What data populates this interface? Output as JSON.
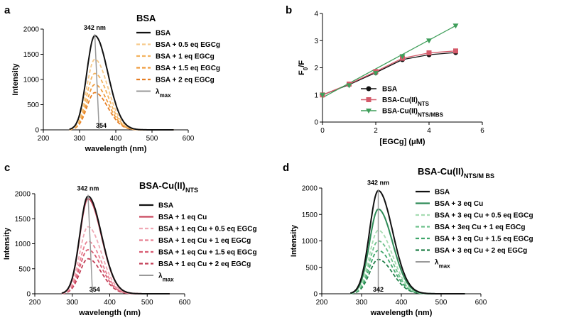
{
  "chart_data": [
    {
      "type": "line",
      "panel": "a",
      "title": "BSA",
      "xlabel": "wavelength (nm)",
      "ylabel": "Intensity",
      "xlim": [
        200,
        600
      ],
      "ylim": [
        0,
        2000
      ],
      "xticks": [
        200,
        300,
        400,
        500,
        600
      ],
      "yticks": [
        0,
        500,
        1000,
        1500,
        2000
      ],
      "xtick_labels": [
        "200",
        "300",
        "400",
        "500",
        "600"
      ],
      "ytick_labels": [
        "0",
        "500",
        "1000",
        "1500",
        "2000"
      ],
      "peak_label": "342 nm",
      "peak_x": 342,
      "shift_label": "354",
      "shift_x": 354,
      "series": [
        {
          "name": "BSA",
          "color": "#111111",
          "dash": "solid",
          "peak": 1870
        },
        {
          "name": "BSA + 0.5 eq EGCg",
          "color": "#f6c98a",
          "dash": "dashed",
          "peak": 1400
        },
        {
          "name": "BSA + 1 eq EGCg",
          "color": "#f3b25e",
          "dash": "dashed",
          "peak": 1120
        },
        {
          "name": "BSA + 1.5 eq EGCg",
          "color": "#ef9b3c",
          "dash": "dashed",
          "peak": 900
        },
        {
          "name": "BSA + 2 eq EGCg",
          "color": "#e57d22",
          "dash": "dashed",
          "peak": 740
        }
      ],
      "lambda_legend": "λ",
      "lambda_sub": "max",
      "lambda_color": "#999999"
    },
    {
      "type": "scatter",
      "panel": "b",
      "title": "",
      "xlabel": "[EGCg] (μM)",
      "ylabel": "F",
      "ylabel_sub": "0",
      "ylabel_suffix": "/F",
      "xlim": [
        0,
        6
      ],
      "ylim": [
        0,
        4
      ],
      "xticks": [
        0,
        2,
        4,
        6
      ],
      "yticks": [
        0,
        1,
        2,
        3,
        4
      ],
      "xtick_labels": [
        "0",
        "2",
        "4",
        "6"
      ],
      "ytick_labels": [
        "0",
        "1",
        "2",
        "3",
        "4"
      ],
      "x": [
        0,
        1,
        2,
        3,
        4,
        5
      ],
      "series": [
        {
          "name": "BSA",
          "sub": "",
          "color": "#111111",
          "marker": "circle",
          "values": [
            1.0,
            1.38,
            1.82,
            2.3,
            2.48,
            2.56
          ],
          "fit": [
            0.95,
            3.35
          ]
        },
        {
          "name": "BSA-Cu(II)",
          "sub": "NTS",
          "color": "#d45a6a",
          "marker": "square",
          "values": [
            1.0,
            1.4,
            1.86,
            2.35,
            2.55,
            2.62
          ],
          "fit": [
            0.95,
            3.4
          ]
        },
        {
          "name": "BSA-Cu(II)",
          "sub": "NTS/MBS",
          "color": "#3f9e5a",
          "marker": "triangle",
          "values": [
            1.0,
            1.35,
            1.8,
            2.42,
            3.0,
            3.55
          ],
          "fit": [
            0.9,
            3.55
          ]
        }
      ]
    },
    {
      "type": "line",
      "panel": "c",
      "title": "BSA-Cu(II)",
      "title_sub": "NTS",
      "xlabel": "wavelength (nm)",
      "ylabel": "Intensity",
      "xlim": [
        200,
        600
      ],
      "ylim": [
        0,
        2000
      ],
      "xticks": [
        200,
        300,
        400,
        500,
        600
      ],
      "yticks": [
        0,
        500,
        1000,
        1500,
        2000
      ],
      "xtick_labels": [
        "200",
        "300",
        "400",
        "500",
        "600"
      ],
      "ytick_labels": [
        "0",
        "500",
        "1000",
        "1500",
        "2000"
      ],
      "peak_label": "342 nm",
      "peak_x": 342,
      "shift_label": "354",
      "shift_x": 354,
      "series": [
        {
          "name": "BSA",
          "color": "#111111",
          "dash": "solid",
          "peak": 1950
        },
        {
          "name": "BSA + 1 eq Cu",
          "color": "#c9485e",
          "dash": "solid",
          "peak": 1900
        },
        {
          "name": "BSA + 1 eq Cu + 0.5 eq EGCg",
          "color": "#f0a8b4",
          "dash": "dashed",
          "peak": 1340
        },
        {
          "name": "BSA + 1 eq Cu + 1 eq EGCg",
          "color": "#e88092",
          "dash": "dashed",
          "peak": 1050
        },
        {
          "name": "BSA + 1 eq Cu + 1.5 eq EGCg",
          "color": "#d85c72",
          "dash": "dashed",
          "peak": 880
        },
        {
          "name": "BSA + 1 eq Cu + 2 eq EGCg",
          "color": "#c23e56",
          "dash": "dashed",
          "peak": 700
        }
      ],
      "lambda_legend": "λ",
      "lambda_sub": "max",
      "lambda_color": "#999999"
    },
    {
      "type": "line",
      "panel": "d",
      "title": "BSA-Cu(II)",
      "title_sub": "NTS/M BS",
      "xlabel": "wavelength (nm)",
      "ylabel": "Intensity",
      "xlim": [
        200,
        600
      ],
      "ylim": [
        0,
        2000
      ],
      "xticks": [
        200,
        300,
        400,
        500,
        600
      ],
      "yticks": [
        0,
        500,
        1000,
        1500,
        2000
      ],
      "xtick_labels": [
        "200",
        "300",
        "400",
        "500",
        "600"
      ],
      "ytick_labels": [
        "0",
        "500",
        "1000",
        "1500",
        "2000"
      ],
      "peak_label": "342 nm",
      "peak_x": 342,
      "shift_label": "342",
      "shift_x": 342,
      "series": [
        {
          "name": "BSA",
          "color": "#111111",
          "dash": "solid",
          "peak": 1950
        },
        {
          "name": "BSA + 3 eq Cu",
          "color": "#2e8b57",
          "dash": "solid",
          "peak": 1600
        },
        {
          "name": "BSA + 3 eq Cu + 0.5 eq EGCg",
          "color": "#a6dcb2",
          "dash": "dashed",
          "peak": 1200
        },
        {
          "name": "BSA + 3eq Cu + 1 eq EGCg",
          "color": "#6cc08a",
          "dash": "dashed",
          "peak": 1000
        },
        {
          "name": "BSA + 3 eq Cu + 1.5 eq EGCg",
          "color": "#3fa56a",
          "dash": "dashed",
          "peak": 820
        },
        {
          "name": "BSA + 3 eq Cu + 2 eq EGCg",
          "color": "#23804a",
          "dash": "dashed",
          "peak": 650
        }
      ],
      "lambda_legend": "λ",
      "lambda_sub": "max",
      "lambda_color": "#999999"
    }
  ]
}
